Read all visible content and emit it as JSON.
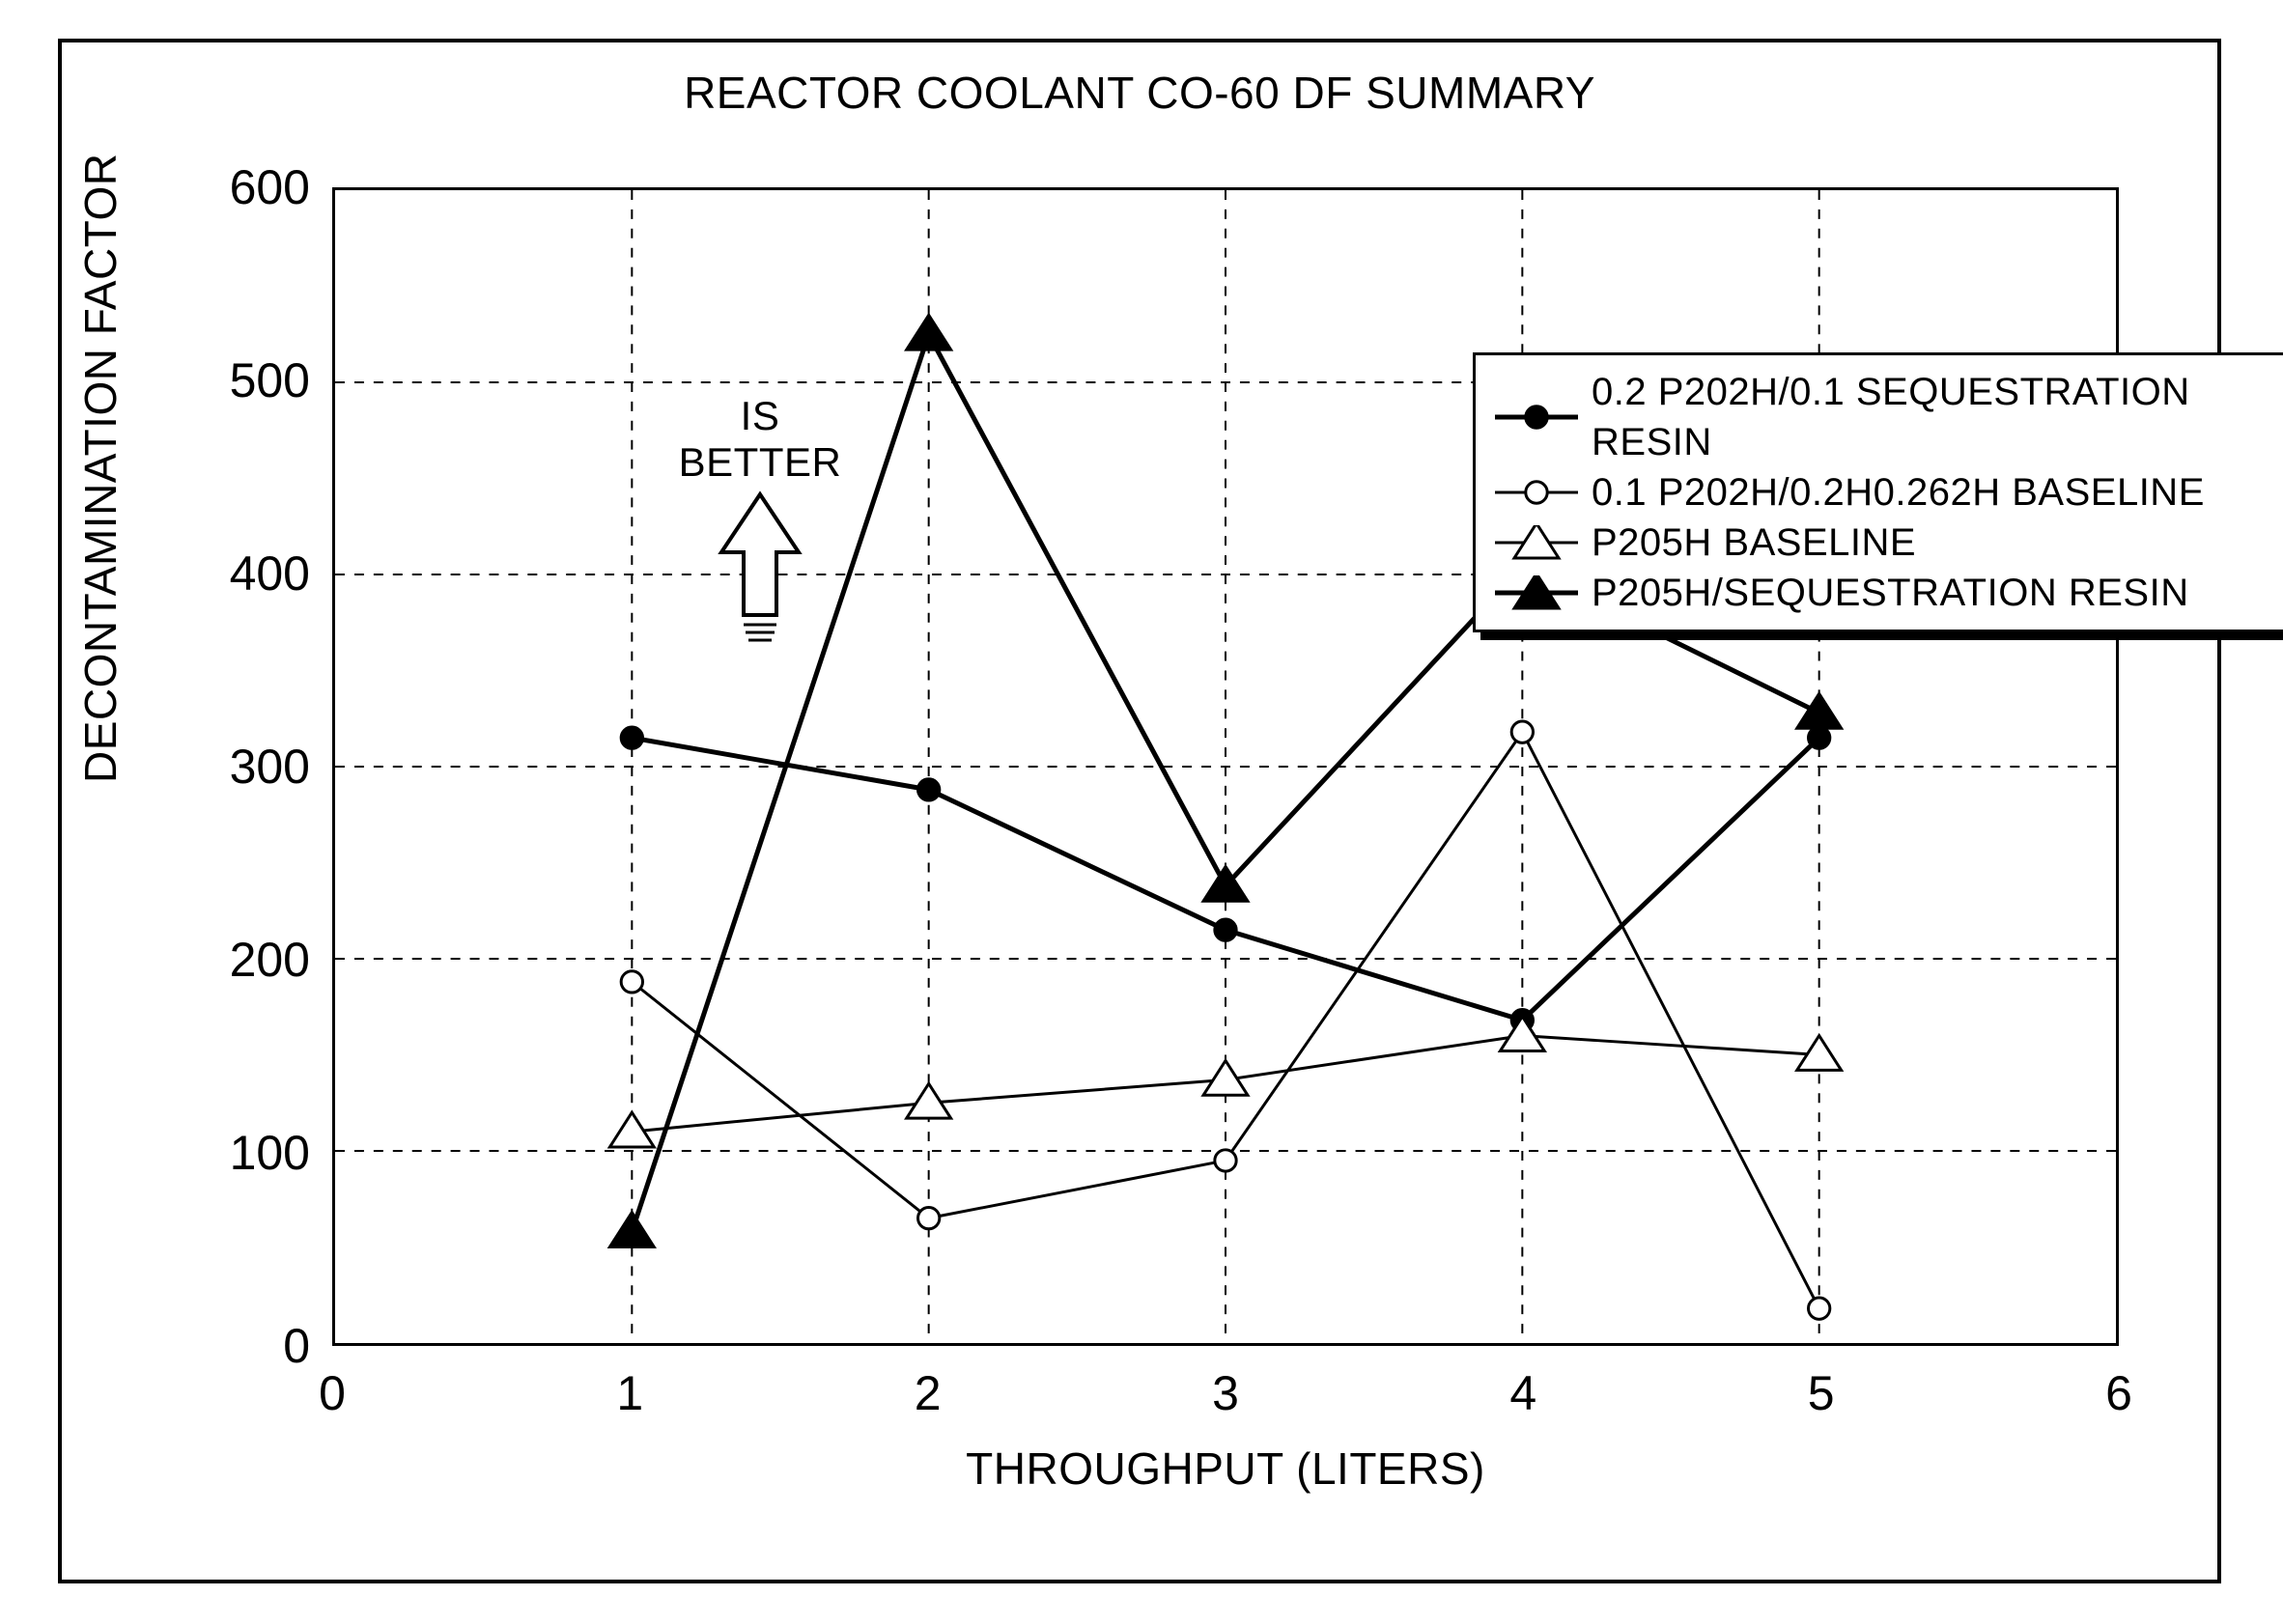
{
  "chart": {
    "type": "line",
    "title": "REACTOR COOLANT CO-60 DF SUMMARY",
    "xlabel": "THROUGHPUT (LITERS)",
    "ylabel": "DECONTAMINATION FACTOR",
    "xlim": [
      0,
      6
    ],
    "ylim": [
      0,
      600
    ],
    "xtick_step": 1,
    "ytick_step": 100,
    "x_values": [
      1,
      2,
      3,
      4,
      5
    ],
    "series": [
      {
        "id": "s1",
        "label": "0.2 P202H/0.1 SEQUESTRATION RESIN",
        "marker": "circle-filled",
        "marker_size": 16,
        "line_width": 5,
        "line_color": "#000000",
        "fill_color": "#000000",
        "values": [
          315,
          288,
          215,
          168,
          315
        ]
      },
      {
        "id": "s2",
        "label": "0.1 P202H/0.2H0.262H BASELINE",
        "marker": "circle-open",
        "marker_size": 16,
        "line_width": 3,
        "line_color": "#000000",
        "fill_color": "#ffffff",
        "values": [
          188,
          65,
          95,
          318,
          18
        ]
      },
      {
        "id": "s3",
        "label": "P205H BASELINE",
        "marker": "triangle-open",
        "marker_size": 20,
        "line_width": 3,
        "line_color": "#000000",
        "fill_color": "#ffffff",
        "values": [
          110,
          125,
          137,
          160,
          150
        ]
      },
      {
        "id": "s4",
        "label": "P205H/SEQUESTRATION RESIN",
        "marker": "triangle-filled",
        "marker_size": 20,
        "line_width": 5,
        "line_color": "#000000",
        "fill_color": "#000000",
        "values": [
          58,
          525,
          238,
          404,
          328
        ]
      }
    ],
    "annotation": {
      "text": "IS BETTER"
    },
    "grid_color": "#000000",
    "grid_dash": "10 10",
    "background_color": "#ffffff",
    "font_family": "Arial Narrow",
    "title_fontsize": 46,
    "label_fontsize": 46,
    "tick_fontsize": 50,
    "legend_fontsize": 40
  }
}
